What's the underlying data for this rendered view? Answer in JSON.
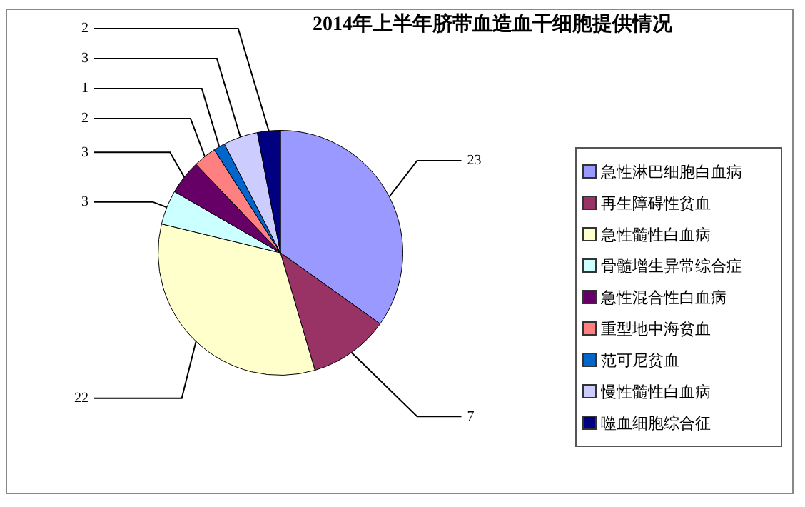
{
  "chart_data": {
    "type": "pie",
    "title": "2014年上半年脐带血造血干细胞提供情况",
    "categories": [
      "急性淋巴细胞白血病",
      "再生障碍性贫血",
      "急性髓性白血病",
      "骨髓增生异常综合症",
      "急性混合性白血病",
      "重型地中海贫血",
      "范可尼贫血",
      "慢性髓性白血病",
      "噬血细胞综合征"
    ],
    "values": [
      23,
      7,
      22,
      3,
      3,
      2,
      1,
      3,
      2
    ],
    "colors": [
      "#9999ff",
      "#993366",
      "#ffffcc",
      "#ccffff",
      "#660066",
      "#ff8080",
      "#0066cc",
      "#ccccff",
      "#000080"
    ],
    "data_labels": true,
    "legend": "right"
  }
}
